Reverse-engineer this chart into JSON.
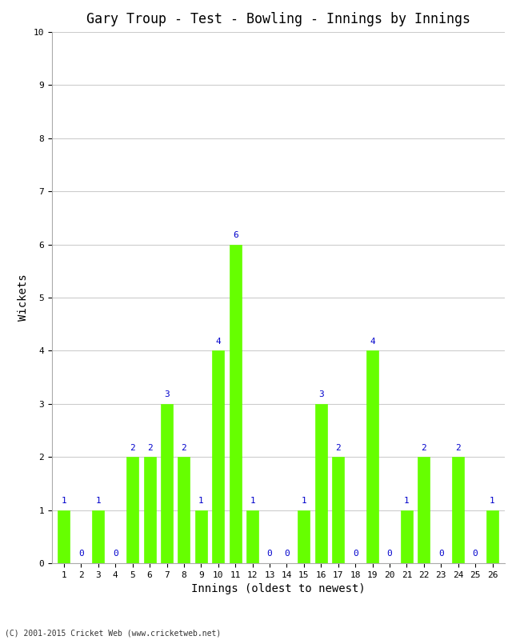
{
  "title": "Gary Troup - Test - Bowling - Innings by Innings",
  "xlabel": "Innings (oldest to newest)",
  "ylabel": "Wickets",
  "categories": [
    "1",
    "2",
    "3",
    "4",
    "5",
    "6",
    "7",
    "8",
    "9",
    "10",
    "11",
    "12",
    "13",
    "14",
    "15",
    "16",
    "17",
    "18",
    "19",
    "20",
    "21",
    "22",
    "23",
    "24",
    "25",
    "26"
  ],
  "values": [
    1,
    0,
    1,
    0,
    2,
    2,
    3,
    2,
    1,
    4,
    6,
    1,
    0,
    0,
    1,
    3,
    2,
    0,
    4,
    0,
    1,
    2,
    0,
    2,
    0,
    1
  ],
  "bar_color": "#66ff00",
  "bar_edge_color": "#66ff00",
  "label_color": "#0000cc",
  "ylim": [
    0,
    10
  ],
  "yticks": [
    0,
    1,
    2,
    3,
    4,
    5,
    6,
    7,
    8,
    9,
    10
  ],
  "background_color": "#ffffff",
  "grid_color": "#cccccc",
  "footer": "(C) 2001-2015 Cricket Web (www.cricketweb.net)",
  "title_fontsize": 12,
  "axis_label_fontsize": 10,
  "tick_fontsize": 8,
  "label_fontsize": 8
}
